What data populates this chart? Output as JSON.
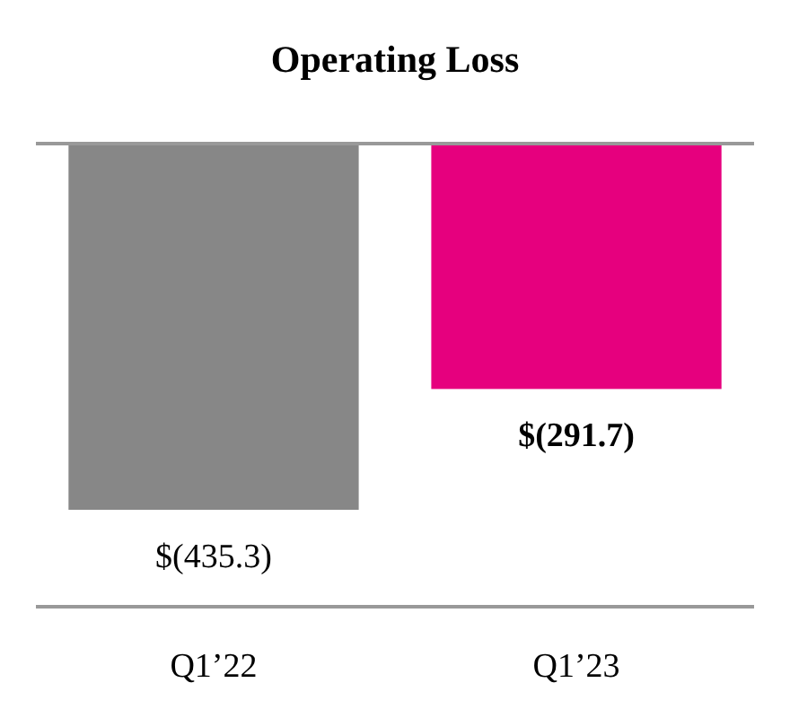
{
  "chart_data": {
    "type": "bar",
    "title": "Operating Loss",
    "categories": [
      "Q1’22",
      "Q1’23"
    ],
    "values": [
      -435.3,
      -291.7
    ],
    "colors": [
      "#878787",
      "#e6007e"
    ],
    "value_labels": [
      "$(435.3)",
      "$(291.7)"
    ]
  }
}
